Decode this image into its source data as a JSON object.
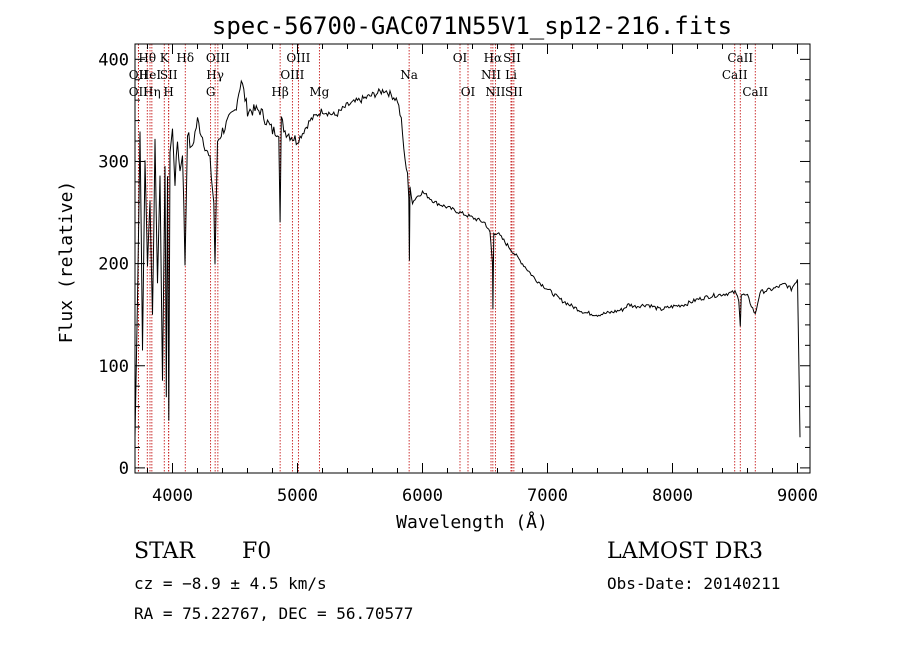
{
  "chart_data": {
    "type": "line",
    "title": "spec-56700-GAC071N55V1_sp12-216.fits",
    "xlabel": "Wavelength (Å)",
    "ylabel": "Flux (relative)",
    "xlim": [
      3700,
      9100
    ],
    "ylim": [
      -5,
      415
    ],
    "xticks": [
      4000,
      5000,
      6000,
      7000,
      8000,
      9000
    ],
    "yticks": [
      0,
      100,
      200,
      300,
      400
    ],
    "spectrum": {
      "x": [
        3700,
        3720,
        3740,
        3760,
        3780,
        3800,
        3820,
        3840,
        3860,
        3880,
        3900,
        3920,
        3940,
        3950,
        3960,
        3970,
        3980,
        4000,
        4020,
        4040,
        4060,
        4080,
        4100,
        4120,
        4150,
        4200,
        4250,
        4300,
        4330,
        4340,
        4360,
        4400,
        4450,
        4500,
        4550,
        4600,
        4700,
        4800,
        4850,
        4861,
        4870,
        4900,
        5000,
        5100,
        5200,
        5300,
        5400,
        5500,
        5600,
        5700,
        5800,
        5830,
        5860,
        5880,
        5890,
        5895,
        5900,
        5920,
        5950,
        6000,
        6100,
        6200,
        6300,
        6400,
        6500,
        6540,
        6560,
        6563,
        6570,
        6600,
        6700,
        6800,
        6900,
        7000,
        7100,
        7200,
        7300,
        7400,
        7500,
        7600,
        7650,
        7700,
        7800,
        7900,
        8000,
        8100,
        8200,
        8300,
        8400,
        8500,
        8530,
        8542,
        8550,
        8600,
        8662,
        8700,
        8800,
        8900,
        8950,
        9000,
        9020
      ],
      "y": [
        30,
        170,
        330,
        120,
        300,
        200,
        260,
        150,
        320,
        180,
        290,
        80,
        300,
        70,
        280,
        50,
        310,
        330,
        280,
        320,
        290,
        310,
        200,
        330,
        310,
        340,
        320,
        300,
        260,
        200,
        320,
        330,
        340,
        350,
        380,
        350,
        350,
        330,
        330,
        240,
        340,
        330,
        320,
        340,
        350,
        345,
        355,
        360,
        365,
        370,
        360,
        340,
        300,
        290,
        265,
        200,
        275,
        260,
        265,
        270,
        260,
        255,
        250,
        245,
        240,
        230,
        200,
        155,
        230,
        230,
        215,
        200,
        185,
        175,
        165,
        158,
        152,
        150,
        152,
        155,
        160,
        158,
        160,
        155,
        158,
        160,
        165,
        168,
        170,
        172,
        165,
        140,
        170,
        168,
        150,
        172,
        175,
        180,
        175,
        185,
        30
      ]
    },
    "lines": [
      {
        "label": "Hθ",
        "wave": 3798,
        "row": 1
      },
      {
        "label": "OII",
        "wave": 3727,
        "row": 2
      },
      {
        "label": "OII",
        "wave": 3727,
        "row": 3
      },
      {
        "label": "HeI",
        "wave": 3820,
        "row": 2
      },
      {
        "label": "Hη",
        "wave": 3835,
        "row": 3
      },
      {
        "label": "K",
        "wave": 3934,
        "row": 1
      },
      {
        "label": "SII",
        "wave": 3970,
        "row": 2
      },
      {
        "label": "H",
        "wave": 3969,
        "row": 3
      },
      {
        "label": "Hδ",
        "wave": 4102,
        "row": 1
      },
      {
        "label": "OIII",
        "wave": 4363,
        "row": 1
      },
      {
        "label": "Hγ",
        "wave": 4341,
        "row": 2
      },
      {
        "label": "G",
        "wave": 4305,
        "row": 3
      },
      {
        "label": "OIII",
        "wave": 5007,
        "row": 1
      },
      {
        "label": "OIII",
        "wave": 4959,
        "row": 2
      },
      {
        "label": "Hβ",
        "wave": 4861,
        "row": 3
      },
      {
        "label": "Mg",
        "wave": 5175,
        "row": 3
      },
      {
        "label": "Na",
        "wave": 5893,
        "row": 2
      },
      {
        "label": "OI",
        "wave": 6300,
        "row": 1
      },
      {
        "label": "OI",
        "wave": 6364,
        "row": 3
      },
      {
        "label": "Hα",
        "wave": 6563,
        "row": 1
      },
      {
        "label": "SII",
        "wave": 6716,
        "row": 1
      },
      {
        "label": "NII",
        "wave": 6548,
        "row": 2
      },
      {
        "label": "Li",
        "wave": 6708,
        "row": 2
      },
      {
        "label": "NII",
        "wave": 6583,
        "row": 3
      },
      {
        "label": "SII",
        "wave": 6731,
        "row": 3
      },
      {
        "label": "CaII",
        "wave": 8542,
        "row": 1
      },
      {
        "label": "CaII",
        "wave": 8498,
        "row": 2
      },
      {
        "label": "CaII",
        "wave": 8662,
        "row": 3
      }
    ]
  },
  "info": {
    "class_label": "STAR",
    "subclass": "F0",
    "survey": "LAMOST DR3",
    "cz": "cz = −8.9 ± 4.5 km/s",
    "obs_date": "Obs-Date: 20140211",
    "coords": "RA =  75.22767, DEC =  56.70577"
  }
}
